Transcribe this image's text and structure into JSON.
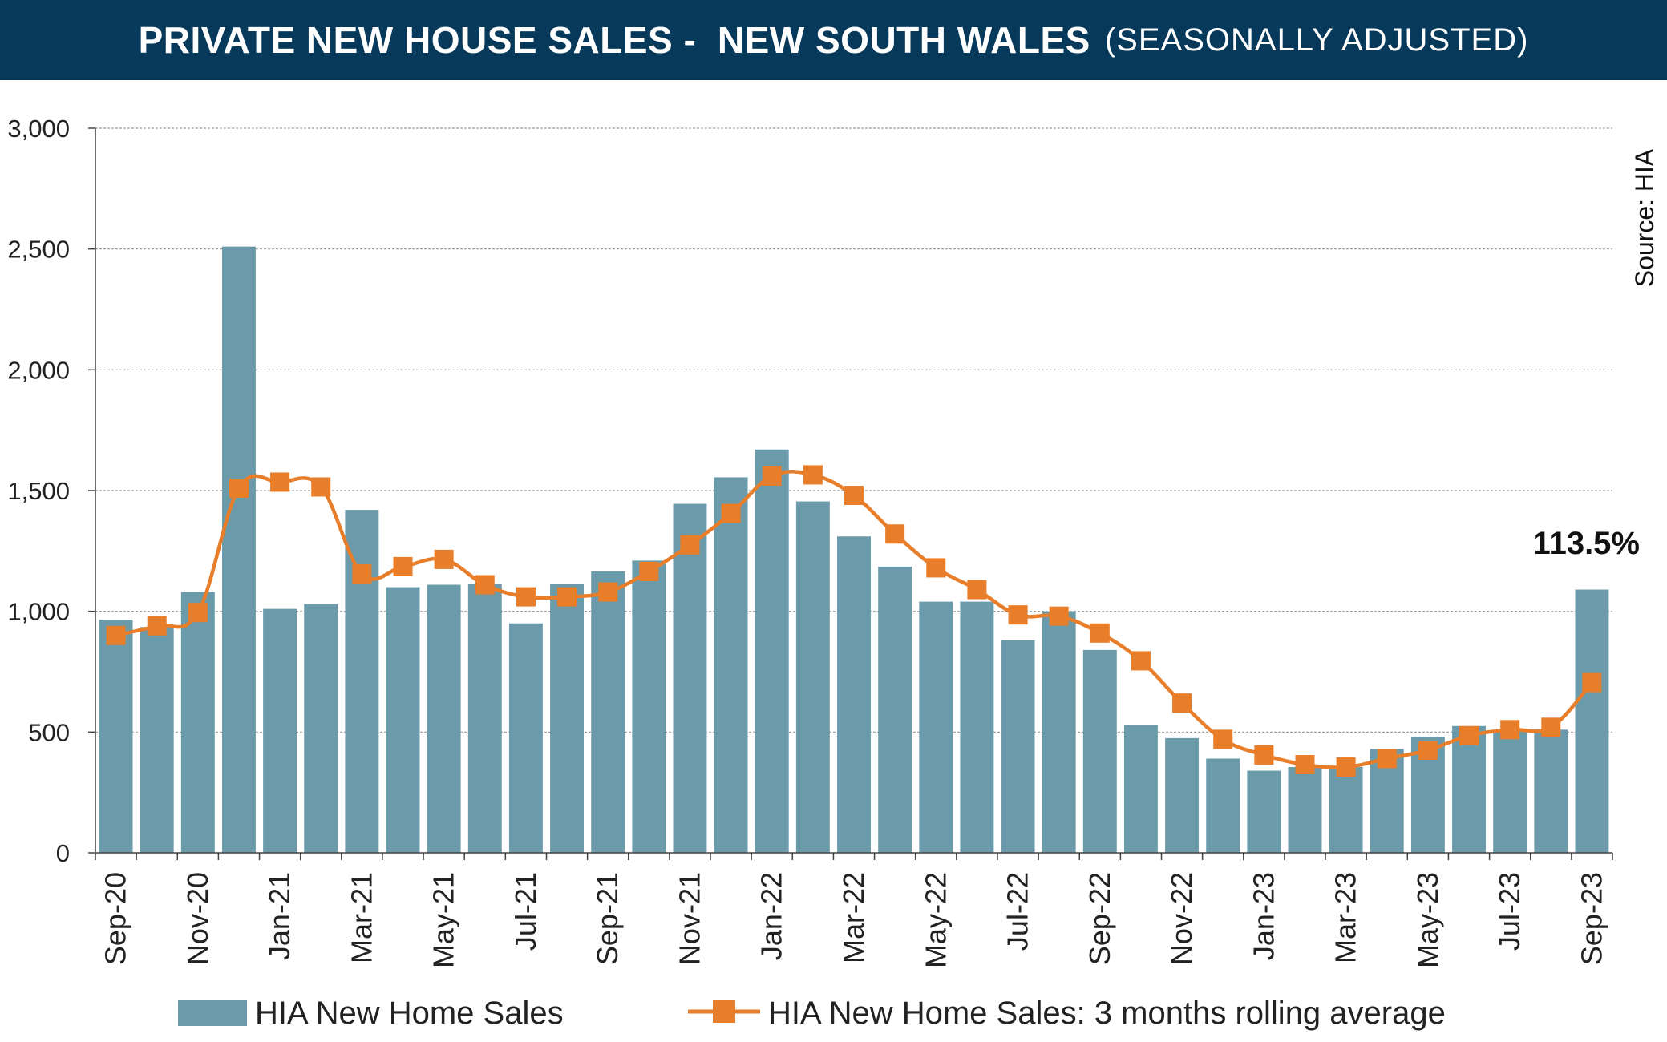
{
  "header": {
    "title": "PRIVATE NEW HOUSE SALES -  NEW SOUTH WALES",
    "subtitle": "(SEASONALLY ADJUSTED)"
  },
  "source": "Source: HIA",
  "colors": {
    "header_bg": "#07395a",
    "bar": "#6b9bab",
    "line": "#e87d2a",
    "grid": "#9a9a9a"
  },
  "chart_data": {
    "type": "bar",
    "categories": [
      "Sep-20",
      "Oct-20",
      "Nov-20",
      "Dec-20",
      "Jan-21",
      "Feb-21",
      "Mar-21",
      "Apr-21",
      "May-21",
      "Jun-21",
      "Jul-21",
      "Aug-21",
      "Sep-21",
      "Oct-21",
      "Nov-21",
      "Dec-21",
      "Jan-22",
      "Feb-22",
      "Mar-22",
      "Apr-22",
      "May-22",
      "Jun-22",
      "Jul-22",
      "Aug-22",
      "Sep-22",
      "Oct-22",
      "Nov-22",
      "Dec-22",
      "Jan-23",
      "Feb-23",
      "Mar-23",
      "Apr-23",
      "May-23",
      "Jun-23",
      "Jul-23",
      "Aug-23",
      "Sep-23"
    ],
    "tick_labels": [
      "Sep-20",
      "Nov-20",
      "Jan-21",
      "Mar-21",
      "May-21",
      "Jul-21",
      "Sep-21",
      "Nov-21",
      "Jan-22",
      "Mar-22",
      "May-22",
      "Jul-22",
      "Sep-22",
      "Nov-22",
      "Jan-23",
      "Mar-23",
      "May-23",
      "Jul-23",
      "Sep-23"
    ],
    "series": [
      {
        "name": "HIA New Home Sales",
        "type": "bar",
        "values": [
          965,
          935,
          1080,
          2510,
          1010,
          1030,
          1420,
          1100,
          1110,
          1115,
          950,
          1115,
          1165,
          1210,
          1445,
          1555,
          1670,
          1455,
          1310,
          1185,
          1040,
          1040,
          880,
          1000,
          840,
          530,
          475,
          390,
          340,
          355,
          355,
          430,
          480,
          525,
          505,
          510,
          1090
        ]
      },
      {
        "name": "HIA New Home Sales: 3 months rolling average",
        "type": "line",
        "values": [
          900,
          940,
          995,
          1510,
          1535,
          1515,
          1155,
          1185,
          1215,
          1110,
          1060,
          1060,
          1080,
          1165,
          1275,
          1405,
          1560,
          1565,
          1480,
          1320,
          1180,
          1090,
          985,
          980,
          910,
          795,
          620,
          470,
          405,
          365,
          355,
          390,
          425,
          485,
          510,
          520,
          705
        ]
      }
    ],
    "yticks": [
      0,
      500,
      1000,
      1500,
      2000,
      2500,
      3000
    ],
    "ytick_labels": [
      "0",
      "500",
      "1,000",
      "1,500",
      "2,000",
      "2,500",
      "3,000"
    ],
    "ylim": [
      0,
      3000
    ],
    "grid": true,
    "legend_position": "bottom",
    "annotation": "113.5%"
  }
}
